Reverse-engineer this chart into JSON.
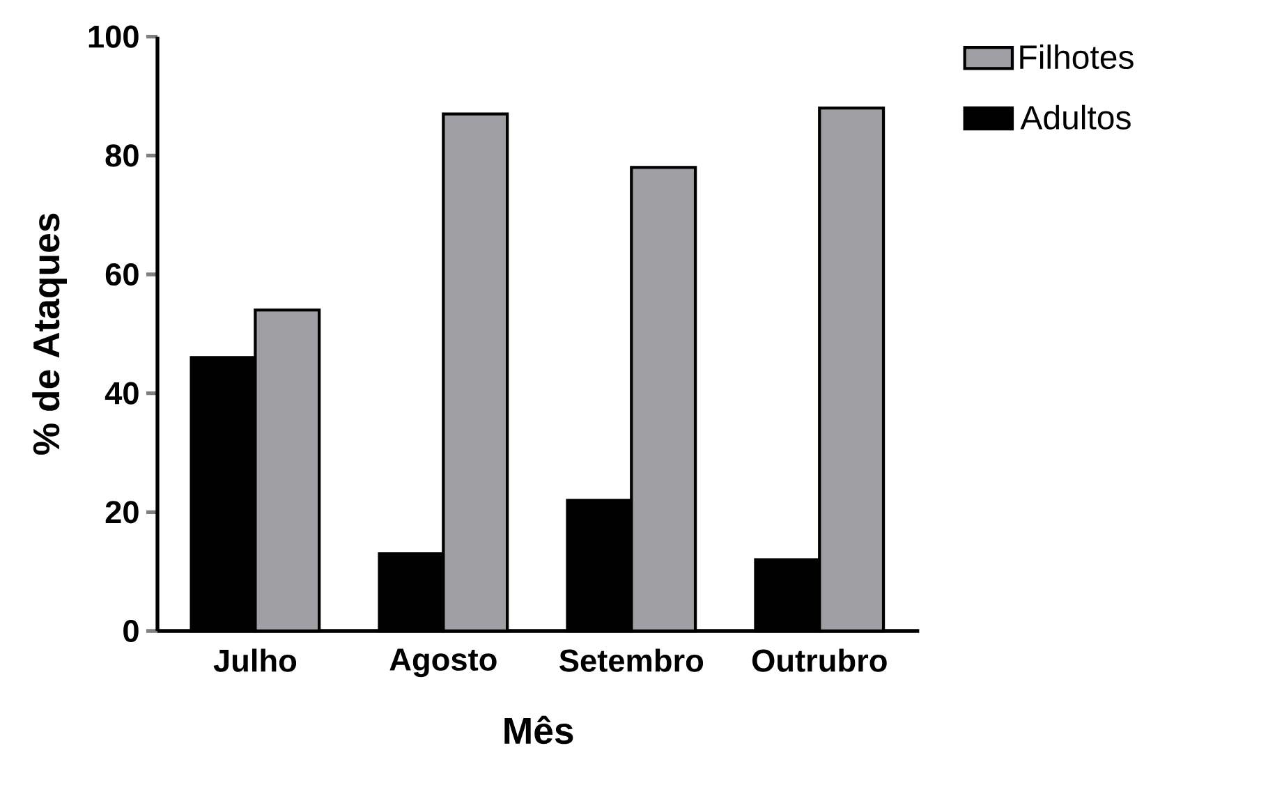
{
  "chart_data": {
    "type": "bar",
    "xlabel": "Mês",
    "ylabel": "% de Ataques",
    "categories": [
      "Julho",
      "Agosto",
      "Setembro",
      "Outrubro"
    ],
    "series": [
      {
        "name": "Adultos",
        "color": "#000000",
        "values": [
          46,
          13,
          22,
          12
        ]
      },
      {
        "name": "Filhotes",
        "color": "#a0a0a4",
        "values": [
          54,
          87,
          78,
          88
        ]
      }
    ],
    "ylim": [
      0,
      100
    ],
    "yticks": [
      0,
      20,
      40,
      60,
      80,
      100
    ],
    "legend": "top right",
    "grid": false
  }
}
